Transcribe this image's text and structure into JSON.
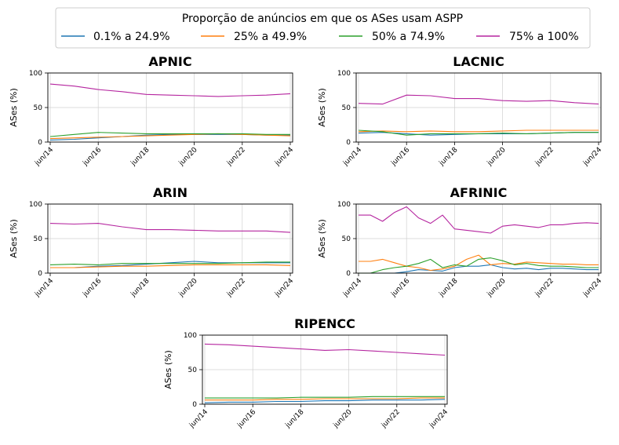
{
  "legend": {
    "title": "Proporção de anúncios em que os ASes usam ASPP",
    "items": [
      {
        "label": "0.1% a 24.9%",
        "color": "#1f77b4"
      },
      {
        "label": "25% a 49.9%",
        "color": "#ff7f0e"
      },
      {
        "label": "50% a 74.9%",
        "color": "#2ca02c"
      },
      {
        "label": "75% a 100%",
        "color": "#b5259f"
      }
    ]
  },
  "chart_data": [
    {
      "type": "line",
      "title": "APNIC",
      "ylabel": "ASes (%)",
      "xlabel": "",
      "xlim": [
        "2014-06",
        "2024-06"
      ],
      "ylim": [
        0,
        100
      ],
      "yticks": [
        0,
        50,
        100
      ],
      "xticks": [
        "jun/14",
        "jun/16",
        "jun/18",
        "jun/20",
        "jun/22",
        "jun/24"
      ],
      "grid": true,
      "x": [
        "2014-06",
        "2015-06",
        "2016-06",
        "2017-06",
        "2018-06",
        "2019-06",
        "2020-06",
        "2021-06",
        "2022-06",
        "2023-06",
        "2024-06"
      ],
      "series": [
        {
          "name": "0.1% a 24.9%",
          "values": [
            3,
            4,
            6,
            8,
            10,
            11,
            11,
            11,
            11,
            10,
            10
          ]
        },
        {
          "name": "25% a 49.9%",
          "values": [
            5,
            6,
            7,
            8,
            9,
            10,
            11,
            12,
            11,
            10,
            9
          ]
        },
        {
          "name": "50% a 74.9%",
          "values": [
            8,
            11,
            14,
            13,
            12,
            12,
            12,
            12,
            12,
            11,
            11
          ]
        },
        {
          "name": "75% a 100%",
          "values": [
            84,
            81,
            76,
            73,
            69,
            68,
            67,
            66,
            67,
            68,
            70
          ]
        }
      ]
    },
    {
      "type": "line",
      "title": "LACNIC",
      "ylabel": "ASes (%)",
      "xlabel": "",
      "xlim": [
        "2014-06",
        "2024-06"
      ],
      "ylim": [
        0,
        100
      ],
      "yticks": [
        0,
        50,
        100
      ],
      "xticks": [
        "jun/14",
        "jun/16",
        "jun/18",
        "jun/20",
        "jun/22",
        "jun/24"
      ],
      "grid": true,
      "x": [
        "2014-06",
        "2015-06",
        "2016-06",
        "2017-06",
        "2018-06",
        "2019-06",
        "2020-06",
        "2021-06",
        "2022-06",
        "2023-06",
        "2024-06"
      ],
      "series": [
        {
          "name": "0.1% a 24.9%",
          "values": [
            13,
            14,
            12,
            10,
            11,
            12,
            12,
            12,
            13,
            14,
            14
          ]
        },
        {
          "name": "25% a 49.9%",
          "values": [
            15,
            16,
            15,
            16,
            15,
            15,
            16,
            17,
            17,
            17,
            17
          ]
        },
        {
          "name": "50% a 74.9%",
          "values": [
            17,
            15,
            10,
            12,
            12,
            12,
            13,
            12,
            13,
            14,
            14
          ]
        },
        {
          "name": "75% a 100%",
          "values": [
            56,
            55,
            68,
            67,
            63,
            63,
            60,
            59,
            60,
            57,
            55
          ]
        }
      ]
    },
    {
      "type": "line",
      "title": "ARIN",
      "ylabel": "ASes (%)",
      "xlabel": "",
      "xlim": [
        "2014-06",
        "2024-06"
      ],
      "ylim": [
        0,
        100
      ],
      "yticks": [
        0,
        50,
        100
      ],
      "xticks": [
        "jun/14",
        "jun/16",
        "jun/18",
        "jun/20",
        "jun/22",
        "jun/24"
      ],
      "grid": true,
      "x": [
        "2014-06",
        "2015-06",
        "2016-06",
        "2017-06",
        "2018-06",
        "2019-06",
        "2020-06",
        "2021-06",
        "2022-06",
        "2023-06",
        "2024-06"
      ],
      "series": [
        {
          "name": "0.1% a 24.9%",
          "values": [
            8,
            8,
            10,
            11,
            13,
            15,
            17,
            15,
            15,
            15,
            15
          ]
        },
        {
          "name": "25% a 49.9%",
          "values": [
            8,
            8,
            9,
            10,
            10,
            11,
            12,
            12,
            12,
            12,
            11
          ]
        },
        {
          "name": "50% a 74.9%",
          "values": [
            12,
            13,
            12,
            14,
            14,
            14,
            14,
            14,
            15,
            16,
            16
          ]
        },
        {
          "name": "75% a 100%",
          "values": [
            72,
            71,
            72,
            67,
            63,
            63,
            62,
            61,
            61,
            61,
            59
          ]
        }
      ]
    },
    {
      "type": "line",
      "title": "AFRINIC",
      "ylabel": "ASes (%)",
      "xlabel": "",
      "xlim": [
        "2014-06",
        "2024-06"
      ],
      "ylim": [
        0,
        100
      ],
      "yticks": [
        0,
        50,
        100
      ],
      "xticks": [
        "jun/14",
        "jun/16",
        "jun/18",
        "jun/20",
        "jun/22",
        "jun/24"
      ],
      "grid": true,
      "x": [
        "2014-06",
        "2014-12",
        "2015-06",
        "2015-12",
        "2016-06",
        "2016-12",
        "2017-06",
        "2017-12",
        "2018-06",
        "2018-12",
        "2019-06",
        "2019-12",
        "2020-06",
        "2020-12",
        "2021-06",
        "2021-12",
        "2022-06",
        "2022-12",
        "2023-06",
        "2023-12",
        "2024-06"
      ],
      "series": [
        {
          "name": "0.1% a 24.9%",
          "values": [
            0,
            0,
            0,
            0,
            2,
            5,
            4,
            3,
            8,
            10,
            10,
            12,
            8,
            6,
            7,
            5,
            7,
            7,
            6,
            5,
            5
          ]
        },
        {
          "name": "25% a 49.9%",
          "values": [
            17,
            17,
            20,
            15,
            10,
            8,
            4,
            6,
            10,
            20,
            26,
            12,
            14,
            13,
            16,
            15,
            14,
            13,
            13,
            12,
            12
          ]
        },
        {
          "name": "50% a 74.9%",
          "values": [
            0,
            0,
            5,
            8,
            10,
            14,
            20,
            8,
            12,
            10,
            20,
            22,
            18,
            12,
            14,
            11,
            10,
            10,
            9,
            8,
            8
          ]
        },
        {
          "name": "75% a 100%",
          "values": [
            84,
            84,
            75,
            88,
            96,
            80,
            72,
            84,
            64,
            62,
            60,
            58,
            68,
            70,
            68,
            66,
            70,
            70,
            72,
            73,
            72
          ]
        }
      ]
    },
    {
      "type": "line",
      "title": "RIPENCC",
      "ylabel": "ASes (%)",
      "xlabel": "",
      "xlim": [
        "2014-06",
        "2024-06"
      ],
      "ylim": [
        0,
        100
      ],
      "yticks": [
        0,
        50,
        100
      ],
      "xticks": [
        "jun/14",
        "jun/16",
        "jun/18",
        "jun/20",
        "jun/22",
        "jun/24"
      ],
      "grid": true,
      "x": [
        "2014-06",
        "2015-06",
        "2016-06",
        "2017-06",
        "2018-06",
        "2019-06",
        "2020-06",
        "2021-06",
        "2022-06",
        "2023-06",
        "2024-06"
      ],
      "series": [
        {
          "name": "0.1% a 24.9%",
          "values": [
            2,
            3,
            3,
            4,
            4,
            5,
            5,
            6,
            6,
            6,
            7
          ]
        },
        {
          "name": "25% a 49.9%",
          "values": [
            6,
            6,
            6,
            7,
            7,
            8,
            8,
            8,
            8,
            9,
            9
          ]
        },
        {
          "name": "50% a 74.9%",
          "values": [
            9,
            9,
            9,
            9,
            10,
            10,
            10,
            11,
            11,
            11,
            11
          ]
        },
        {
          "name": "75% a 100%",
          "values": [
            87,
            86,
            84,
            82,
            80,
            78,
            79,
            77,
            75,
            73,
            71
          ]
        }
      ]
    }
  ]
}
